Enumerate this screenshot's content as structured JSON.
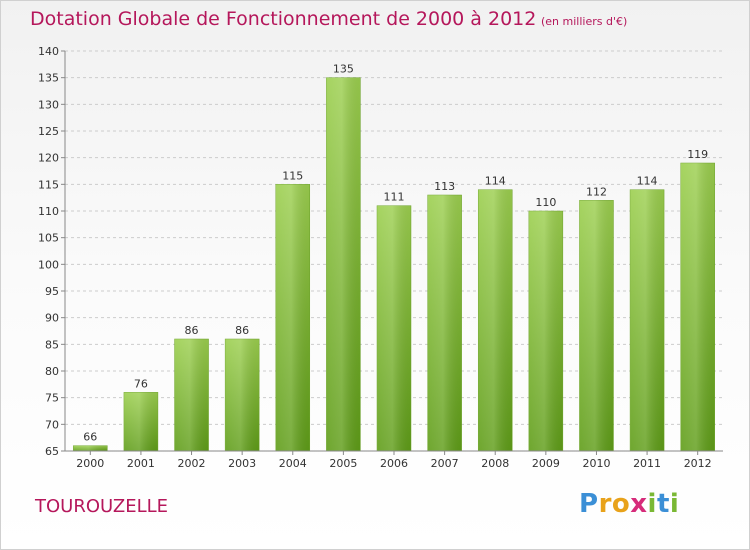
{
  "header": {
    "title": "Dotation Globale de Fonctionnement de 2000 à 2012",
    "unit": "(en milliers d'€)"
  },
  "footer": {
    "commune": "TOUROUZELLE",
    "logo_text": "Proxiti",
    "logo_letters": [
      {
        "ch": "P",
        "color": "#3b8fd6"
      },
      {
        "ch": "r",
        "color": "#e8a21a"
      },
      {
        "ch": "o",
        "color": "#e8a21a"
      },
      {
        "ch": "x",
        "color": "#d62b7a"
      },
      {
        "ch": "i",
        "color": "#7ab834"
      },
      {
        "ch": "t",
        "color": "#3b8fd6"
      },
      {
        "ch": "i",
        "color": "#7ab834"
      }
    ]
  },
  "colors": {
    "title": "#b5175b",
    "bar_top": "#9ccf4f",
    "bar_bottom": "#5f9d18",
    "grid": "#cccccc",
    "axis": "#888888",
    "text": "#333333"
  },
  "chart_data": {
    "type": "bar",
    "title": "Dotation Globale de Fonctionnement de 2000 à 2012",
    "subtitle": "(en milliers d'€)",
    "categories": [
      "2000",
      "2001",
      "2002",
      "2003",
      "2004",
      "2005",
      "2006",
      "2007",
      "2008",
      "2009",
      "2010",
      "2011",
      "2012"
    ],
    "values": [
      66,
      76,
      86,
      86,
      115,
      135,
      111,
      113,
      114,
      110,
      112,
      114,
      119
    ],
    "ylim": [
      65,
      140
    ],
    "yticks": [
      65,
      70,
      75,
      80,
      85,
      90,
      95,
      100,
      105,
      110,
      115,
      120,
      125,
      130,
      135,
      140
    ],
    "xlabel": "",
    "ylabel": "",
    "grid": "horizontal dashed",
    "data_labels": true
  }
}
